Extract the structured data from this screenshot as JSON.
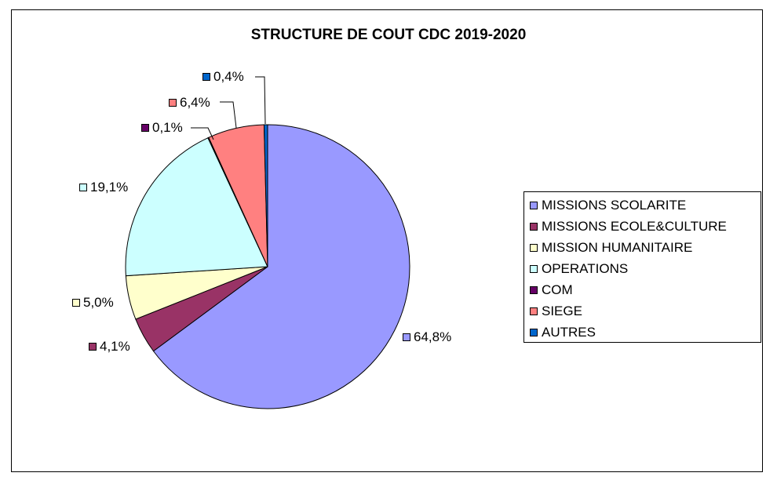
{
  "chart_data": {
    "type": "pie",
    "title": "STRUCTURE DE COUT CDC 2019-2020",
    "slices": [
      {
        "name": "MISSIONS SCOLARITE",
        "value": 64.8,
        "label": "64,8%",
        "color": "#9999ff"
      },
      {
        "name": "MISSIONS ECOLE&CULTURE",
        "value": 4.1,
        "label": "4,1%",
        "color": "#993366"
      },
      {
        "name": "MISSION HUMANITAIRE",
        "value": 5.0,
        "label": "5,0%",
        "color": "#ffffcc"
      },
      {
        "name": "OPERATIONS",
        "value": 19.1,
        "label": "19,1%",
        "color": "#ccffff"
      },
      {
        "name": "COM",
        "value": 0.1,
        "label": "0,1%",
        "color": "#660066"
      },
      {
        "name": "SIEGE",
        "value": 6.4,
        "label": "6,4%",
        "color": "#ff8080"
      },
      {
        "name": "AUTRES",
        "value": 0.4,
        "label": "0,4%",
        "color": "#0066cc"
      }
    ],
    "legend_position": "right"
  }
}
